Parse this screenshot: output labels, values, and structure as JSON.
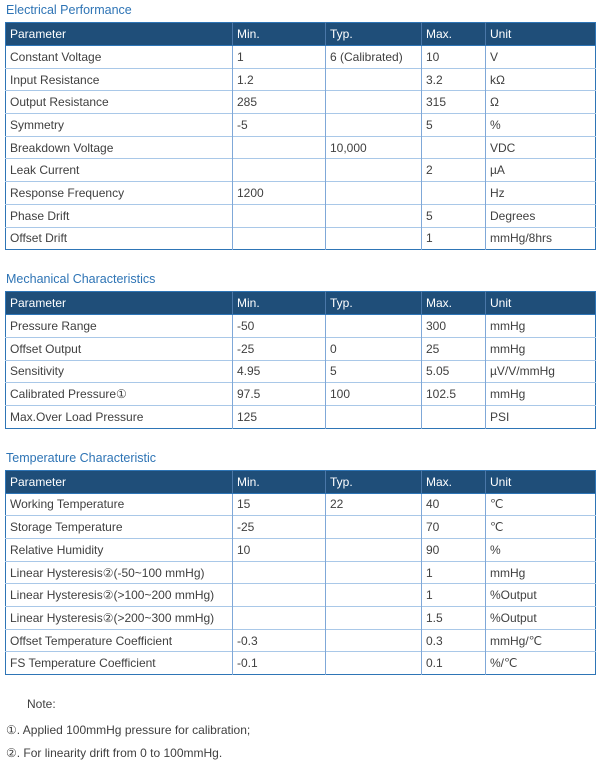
{
  "colors": {
    "title_blue": "#2E74B5",
    "header_bg": "#1F4E79",
    "header_text": "#FFFFFF",
    "outer_border": "#2E75B6",
    "grid_vertical": "#7FA8D8",
    "grid_horizontal": "#A9C8E8",
    "body_text": "#404040"
  },
  "tables": [
    {
      "title": "Electrical Performance",
      "headers": [
        "Parameter",
        "Min.",
        "Typ.",
        "Max.",
        "Unit"
      ],
      "rows": [
        [
          "Constant Voltage",
          "1",
          "6 (Calibrated)",
          "10",
          "V"
        ],
        [
          "Input Resistance",
          "1.2",
          "",
          "3.2",
          "kΩ"
        ],
        [
          "Output Resistance",
          "285",
          "",
          "315",
          "Ω"
        ],
        [
          "Symmetry",
          "-5",
          "",
          "5",
          "%"
        ],
        [
          "Breakdown Voltage",
          "",
          "10,000",
          "",
          "VDC"
        ],
        [
          "Leak Current",
          "",
          "",
          "2",
          "µA"
        ],
        [
          "Response Frequency",
          "1200",
          "",
          "",
          "Hz"
        ],
        [
          "Phase Drift",
          "",
          "",
          "5",
          "Degrees"
        ],
        [
          "Offset Drift",
          "",
          "",
          "1",
          "mmHg/8hrs"
        ]
      ]
    },
    {
      "title": "Mechanical Characteristics",
      "headers": [
        "Parameter",
        "Min.",
        "Typ.",
        "Max.",
        "Unit"
      ],
      "rows": [
        [
          "Pressure Range",
          "-50",
          "",
          "300",
          "mmHg"
        ],
        [
          "Offset Output",
          "-25",
          "0",
          "25",
          "mmHg"
        ],
        [
          "Sensitivity",
          "4.95",
          "5",
          "5.05",
          "µV/V/mmHg"
        ],
        [
          "Calibrated Pressure①",
          "97.5",
          "100",
          "102.5",
          "mmHg"
        ],
        [
          "Max.Over Load Pressure",
          "125",
          "",
          "",
          "PSI"
        ]
      ]
    },
    {
      "title": "Temperature Characteristic",
      "headers": [
        "Parameter",
        "Min.",
        "Typ.",
        "Max.",
        "Unit"
      ],
      "rows": [
        [
          "Working Temperature",
          "15",
          "22",
          "40",
          "℃"
        ],
        [
          "Storage Temperature",
          "-25",
          "",
          "70",
          "℃"
        ],
        [
          "Relative Humidity",
          "10",
          "",
          "90",
          "%"
        ],
        [
          "Linear Hysteresis②(-50~100 mmHg)",
          "",
          "",
          "1",
          "mmHg"
        ],
        [
          "Linear Hysteresis②(>100~200 mmHg)",
          "",
          "",
          "1",
          "%Output"
        ],
        [
          "Linear Hysteresis②(>200~300 mmHg)",
          "",
          "",
          "1.5",
          "%Output"
        ],
        [
          "Offset Temperature Coefficient",
          "-0.3",
          "",
          "0.3",
          "mmHg/℃"
        ],
        [
          "FS Temperature Coefficient",
          "-0.1",
          "",
          "0.1",
          "%/℃"
        ]
      ]
    }
  ],
  "note": {
    "title": "Note:",
    "items": [
      "①. Applied 100mmHg pressure for calibration;",
      "②. For linearity drift from 0 to 100mmHg."
    ]
  }
}
